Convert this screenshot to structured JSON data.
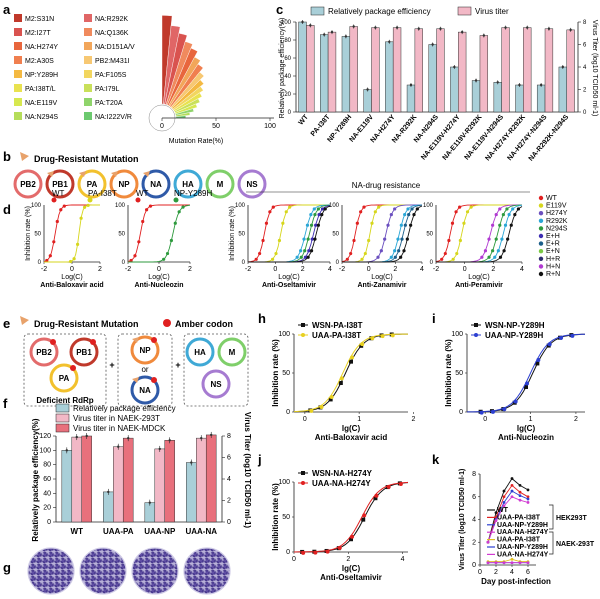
{
  "panels": {
    "a": {
      "letter": "a",
      "legend": [
        "M2:S31N",
        "NA:R292K",
        "M2:I27T",
        "NA:Q136K",
        "NA:H274Y",
        "NA:D151A/V",
        "M2:A30S",
        "PB2:M431I",
        "NP:Y289H",
        "PA:F105S",
        "PA:I38T/L",
        "PA:I79L",
        "NA:E119V",
        "PA:T20A",
        "NA:N294S",
        "NA:I222V/R"
      ],
      "legend_colors": [
        "#c0392b",
        "#e06666",
        "#d9534f",
        "#f08a5d",
        "#e8663d",
        "#f2a65a",
        "#f07f4f",
        "#f7c873",
        "#f4b942",
        "#f2d65f",
        "#e9e24f",
        "#c9e05a",
        "#d7e84f",
        "#8fd46b",
        "#b5dd5a",
        "#6cc96f"
      ],
      "chart_data": {
        "type": "bar",
        "categories": [
          "M2:S31N",
          "NA:R292K",
          "M2:I27T",
          "NA:Q136K",
          "NA:H274Y",
          "NA:D151A/V",
          "M2:A30S",
          "PB2:M431I",
          "NP:Y289H",
          "PA:F105S",
          "PA:I38T/L",
          "PA:I79L",
          "NA:E119V",
          "PA:T20A",
          "NA:N294S",
          "NA:I222V/R"
        ],
        "values": [
          95,
          86,
          80,
          74,
          70,
          64,
          60,
          55,
          50,
          46,
          42,
          38,
          34,
          30,
          26,
          22
        ],
        "xlabel": "Mutation Rate(%)",
        "xlim": [
          0,
          100
        ],
        "ticks": [
          "0",
          "50",
          "100"
        ]
      }
    },
    "b": {
      "letter": "b",
      "title": "Drug-Resistant Mutation",
      "segments": [
        "PB2",
        "PB1",
        "PA",
        "NP",
        "NA",
        "HA",
        "M",
        "NS"
      ],
      "segment_colors": [
        "#e36b6b",
        "#c0392b",
        "#f2c12e",
        "#f08a3c",
        "#2f5aa8",
        "#3fa9d6",
        "#7fcf6a",
        "#a67bd1"
      ]
    },
    "c": {
      "letter": "c",
      "legend": [
        "Relatively package efficiency",
        "Virus titer"
      ],
      "ylabel_left": "Relatively package efficiency(%)",
      "ylabel_right": "Virus Titer (log10 TCID50 ml-1)",
      "left_ticks": [
        "0",
        "20",
        "40",
        "60",
        "80",
        "100"
      ],
      "right_ticks": [
        "0",
        "2",
        "4",
        "6",
        "8"
      ],
      "chart_data": {
        "type": "bar",
        "categories": [
          "WT",
          "PA-I38T",
          "NP-Y289H",
          "NA-E119V",
          "NA-H274Y",
          "NA-R292K",
          "NA-N294S",
          "NA-E119V-H274Y",
          "NA-E119V-R292K",
          "NA-E119V-N294S",
          "NA-H274Y-R292K",
          "NA-H274Y-N294S",
          "NA-R292K-N294S"
        ],
        "series": [
          {
            "name": "Relatively package efficiency",
            "values": [
              100,
              86,
              84,
              25,
              78,
              30,
              75,
              50,
              35,
              33,
              30,
              30,
              50
            ],
            "color": "#a9cfd8"
          },
          {
            "name": "Virus titer",
            "values": [
              7.7,
              7.1,
              7.6,
              7.5,
              7.5,
              7.4,
              7.4,
              7.1,
              6.8,
              7.5,
              7.5,
              7.4,
              7.3
            ],
            "color": "#f2b8c6"
          }
        ],
        "ylim_left": [
          0,
          100
        ],
        "ylim_right": [
          0,
          8
        ]
      }
    },
    "d": {
      "letter": "d",
      "header": "NA-drug resistance",
      "ylabel": "Inhibition rate (%)",
      "xlabel": "Log(C)",
      "subplots": [
        {
          "title": "Anti-Baloxavir acid",
          "legend": [
            "WT",
            "PA-I38T"
          ],
          "ticks": [
            "-2",
            "0",
            "2"
          ]
        },
        {
          "title": "Anti-Nucleozin",
          "legend": [
            "WT",
            "NP-Y289H"
          ],
          "ticks": [
            "-2",
            "0",
            "2"
          ]
        },
        {
          "title": "Anti-Oseltamivir",
          "ticks": [
            "-2",
            "0",
            "2",
            "4"
          ]
        },
        {
          "title": "Anti-Zanamivir",
          "ticks": [
            "-2",
            "0",
            "2",
            "4"
          ]
        },
        {
          "title": "Anti-Peramivir",
          "ticks": [
            "-2",
            "0",
            "2",
            "4"
          ]
        }
      ],
      "legend_right": [
        "WT",
        "E119V",
        "H274Y",
        "R292K",
        "N294S",
        "E+H",
        "E+R",
        "E+N",
        "H+R",
        "H+N",
        "R+N"
      ],
      "legend_right_colors": [
        "#e02020",
        "#d6d61c",
        "#6b4fbf",
        "#2aa6d6",
        "#2e9a3e",
        "#3d2db3",
        "#1b5e8a",
        "#7ac943",
        "#2d2d6e",
        "#b03ad1",
        "#111111"
      ],
      "y_ticks": [
        "0",
        "50",
        "100"
      ]
    },
    "e": {
      "letter": "e",
      "title": "Drug-Resistant Mutation",
      "amber": "Amber codon",
      "box1": [
        "PB2",
        "PB1",
        "PA"
      ],
      "box1_label": "Deficient RdRp",
      "box2": [
        "NP",
        "or",
        "NA"
      ],
      "box3": [
        "HA",
        "M",
        "NS"
      ]
    },
    "f": {
      "letter": "f",
      "legend": [
        "Relatively package efficiency",
        "Virus titer in NAEK-293T",
        "Virus titer in NAEK-MDCK"
      ],
      "ylabel_left": "Relatively package efficiency(%)",
      "ylabel_right": "Virus Titer (log10 TCID50 ml-1)",
      "left_ticks": [
        "0",
        "20",
        "40",
        "60",
        "80",
        "100",
        "120"
      ],
      "right_ticks": [
        "0",
        "2",
        "4",
        "6",
        "8"
      ],
      "chart_data": {
        "type": "bar",
        "categories": [
          "WT",
          "UAA-PA",
          "UAA-NP",
          "UAA-NA"
        ],
        "series": [
          {
            "name": "Relatively package efficiency",
            "values": [
              100,
              42,
              27,
              83
            ],
            "color": "#a9cfd8"
          },
          {
            "name": "Virus titer in NAEK-293T",
            "values": [
              7.9,
              7.0,
              6.8,
              7.8
            ],
            "color": "#f2b8c6"
          },
          {
            "name": "Virus titer in NAEK-MDCK",
            "values": [
              8.0,
              7.8,
              7.6,
              8.1
            ],
            "color": "#e8707c"
          }
        ],
        "ylim_left": [
          0,
          120
        ],
        "ylim_right": [
          0,
          8
        ]
      }
    },
    "g": {
      "letter": "g",
      "plates": 4
    },
    "h": {
      "letter": "h",
      "legend": [
        "WSN-PA-I38T",
        "UAA-PA-I38T"
      ],
      "xlabel": "lg(C)",
      "ylabel": "Inhibition rate (%)",
      "title": "Anti-Baloxavir acid",
      "x_ticks": [
        "0",
        "1",
        "2"
      ],
      "y_ticks": [
        "0",
        "50",
        "100"
      ]
    },
    "i": {
      "letter": "i",
      "legend": [
        "WSN-NP-Y289H",
        "UAA-NP-Y289H"
      ],
      "xlabel": "lg(C)",
      "ylabel": "Inhibition rate (%)",
      "title": "Anti-Nucleozin",
      "x_ticks": [
        "0",
        "1",
        "2"
      ],
      "y_ticks": [
        "0",
        "50",
        "100"
      ]
    },
    "j": {
      "letter": "j",
      "legend": [
        "WSN-NA-H274Y",
        "UAA-NA-H274Y"
      ],
      "xlabel": "lg(C)",
      "ylabel": "Inhibition rate (%)",
      "title": "Anti-Oseltamivir",
      "x_ticks": [
        "0",
        "2",
        "4"
      ],
      "y_ticks": [
        "0",
        "50",
        "100"
      ]
    },
    "k": {
      "letter": "k",
      "legend": [
        "WT",
        "UAA-PA-I38T",
        "UAA-NP-Y289H",
        "UAA-NA-H274Y",
        "UAA-PA-I38T",
        "UAA-NP-Y289H",
        "UAA-NA-H274Y"
      ],
      "legend_colors": [
        "#111111",
        "#e02020",
        "#2c3fd1",
        "#d13ad1",
        "#e0c020",
        "#2c3fd1",
        "#d13ad1"
      ],
      "group1": "HEK293T",
      "group2": "NAEK-293T",
      "xlabel": "Day post-infection",
      "ylabel": "Virus Titer (log10 TCID50 ml-1)",
      "x_ticks": [
        "0",
        "2",
        "4",
        "6"
      ],
      "y_ticks": [
        "0",
        "2",
        "4",
        "6",
        "8"
      ],
      "chart_data": {
        "type": "line",
        "x": [
          1,
          2,
          3,
          4,
          5,
          6
        ],
        "series": [
          {
            "name": "WT",
            "values": [
              2.0,
              4.6,
              6.5,
              7.6,
              7.0,
              6.6
            ]
          },
          {
            "name": "UAA-PA-I38T",
            "values": [
              2.0,
              4.2,
              6.0,
              7.0,
              6.4,
              6.0
            ]
          },
          {
            "name": "UAA-NP-Y289H",
            "values": [
              2.0,
              4.0,
              5.5,
              6.5,
              6.1,
              5.8
            ]
          },
          {
            "name": "UAA-NA-H274Y",
            "values": [
              2.0,
              3.9,
              5.2,
              6.0,
              5.7,
              5.5
            ]
          },
          {
            "name": "UAA-PA-I38T",
            "values": [
              0.3,
              0.3,
              0.3,
              0.5,
              0.3,
              0.3
            ]
          },
          {
            "name": "UAA-NP-Y289H",
            "values": [
              0.2,
              0.2,
              0.2,
              0.2,
              0.2,
              0.2
            ]
          },
          {
            "name": "UAA-NA-H274Y",
            "values": [
              0.2,
              0.2,
              0.2,
              0.2,
              0.2,
              0.2
            ]
          }
        ],
        "xlim": [
          0,
          7
        ],
        "ylim": [
          0,
          8
        ]
      }
    }
  }
}
